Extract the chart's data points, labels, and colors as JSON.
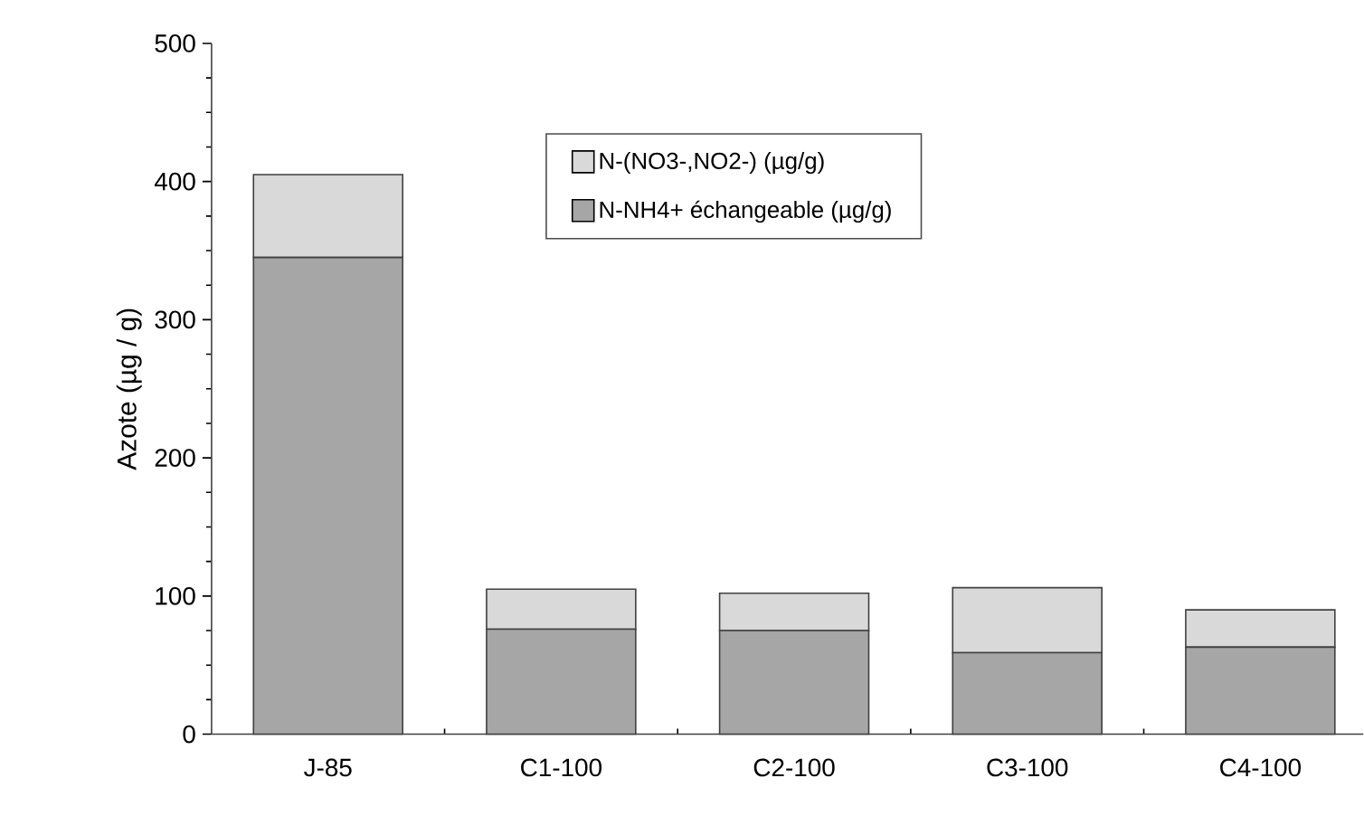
{
  "chart_data": {
    "type": "bar",
    "stacked": true,
    "ylabel": "Azote (µg / g)",
    "categories": [
      "J-85",
      "C1-100",
      "C2-100",
      "C3-100",
      "C4-100"
    ],
    "series": [
      {
        "name": "N-NH4+ échangeable (µg/g)",
        "color": "#a6a6a6",
        "values": [
          345,
          76,
          75,
          59,
          63
        ]
      },
      {
        "name": "N-(NO3-,NO2-)  (µg/g)",
        "color": "#d9d9d9",
        "values": [
          60,
          29,
          27,
          47,
          27
        ]
      }
    ],
    "ylim": [
      0,
      500
    ],
    "yticks": [
      0,
      100,
      200,
      300,
      400,
      500
    ],
    "grid": false,
    "legend": "top right"
  }
}
